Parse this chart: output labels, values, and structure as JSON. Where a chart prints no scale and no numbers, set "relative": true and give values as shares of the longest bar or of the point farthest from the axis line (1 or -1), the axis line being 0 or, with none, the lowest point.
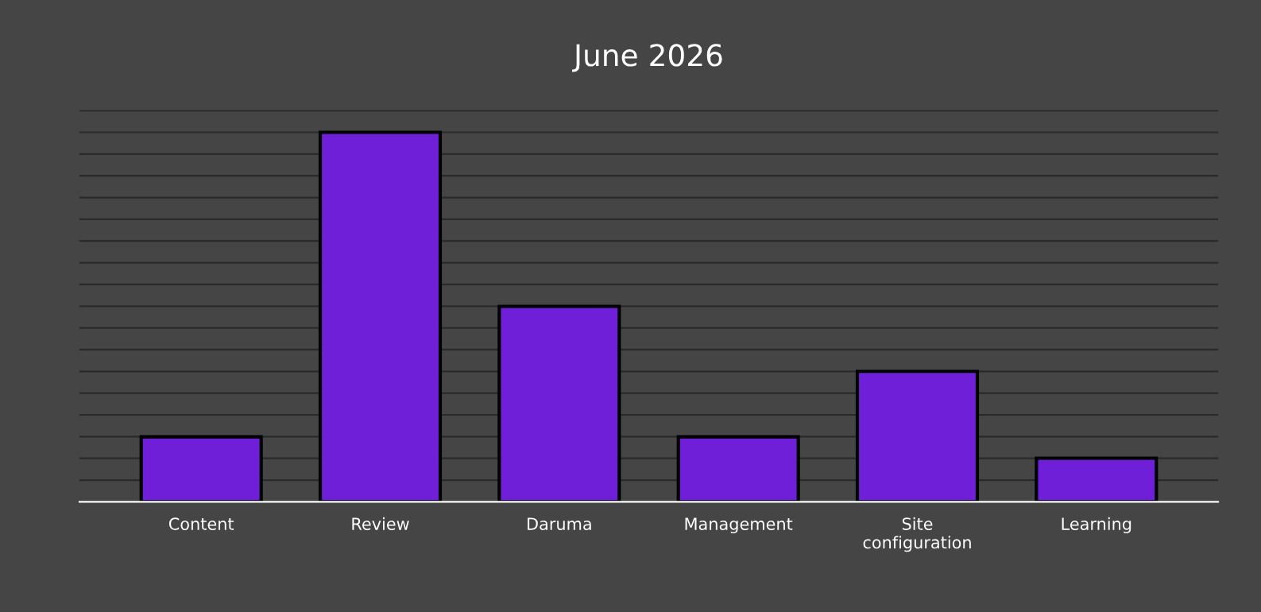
{
  "chart_data": {
    "type": "bar",
    "title": "June 2026",
    "categories": [
      "Content",
      "Review",
      "Daruma",
      "Management",
      "Site\nconfiguration",
      "Learning"
    ],
    "values": [
      0.176,
      1,
      0.529,
      0.176,
      0.353,
      0.118
    ],
    "color": "#6f1fd8",
    "relative": true,
    "grid": "y"
  }
}
